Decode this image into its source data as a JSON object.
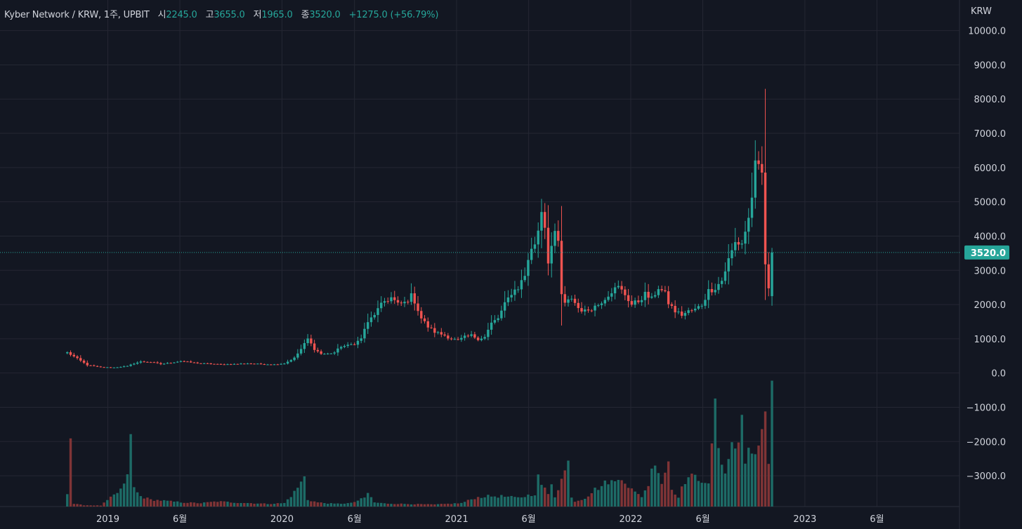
{
  "legend": {
    "symbol": "Kyber Network / KRW, 1주, UPBIT",
    "open_label": "시",
    "open": "2245.0",
    "high_label": "고",
    "high": "3655.0",
    "low_label": "저",
    "low": "1965.0",
    "close_label": "종",
    "close": "3520.0",
    "change": "+1275.0 (+56.79%)"
  },
  "axis": {
    "currency": "KRW",
    "last_price_badge": "3520.0",
    "y_tick_labels": [
      "10000.0",
      "9000.0",
      "8000.0",
      "7000.0",
      "6000.0",
      "5000.0",
      "4000.0",
      "3000.0",
      "2000.0",
      "1000.0",
      "0.0",
      "−1000.0",
      "−2000.0",
      "−3000.0"
    ],
    "x_tick_labels": [
      "2019",
      "6월",
      "2020",
      "6월",
      "2021",
      "6월",
      "2022",
      "6월",
      "2023",
      "6월"
    ]
  },
  "colors": {
    "background": "#131722",
    "grid": "#242733",
    "up": "#26a69a",
    "down": "#ef5350",
    "up_volume": "#1d6b66",
    "down_volume": "#803436",
    "text": "#d1d4dc",
    "last_price_line": "#26a69a"
  },
  "chart_data": {
    "type": "candlestick",
    "interval": "1 week",
    "x_start": "2018-10-08",
    "y_ticks": [
      10000,
      9000,
      8000,
      7000,
      6000,
      5000,
      4000,
      3000,
      2000,
      1000,
      0,
      -1000,
      -2000,
      -3000
    ],
    "y_range": [
      -3900,
      10300
    ],
    "x_ticks": [
      "2019-01-01",
      "2019-06-01",
      "2020-01-01",
      "2020-06-01",
      "2021-01-01",
      "2021-06-01",
      "2022-01-01",
      "2022-06-01",
      "2023-01-01",
      "2023-06-01"
    ],
    "x_range": [
      "2018-05-20",
      "2023-11-21"
    ],
    "last_close": 3520,
    "grid": true,
    "price_keypoints": [
      [
        0,
        600
      ],
      [
        3,
        420
      ],
      [
        6,
        230
      ],
      [
        10,
        170
      ],
      [
        14,
        160
      ],
      [
        18,
        200
      ],
      [
        20,
        280
      ],
      [
        22,
        330
      ],
      [
        25,
        320
      ],
      [
        28,
        260
      ],
      [
        31,
        300
      ],
      [
        34,
        350
      ],
      [
        37,
        310
      ],
      [
        40,
        280
      ],
      [
        43,
        270
      ],
      [
        46,
        250
      ],
      [
        50,
        260
      ],
      [
        54,
        280
      ],
      [
        58,
        260
      ],
      [
        62,
        250
      ],
      [
        65,
        280
      ],
      [
        68,
        440
      ],
      [
        70,
        700
      ],
      [
        72,
        1000
      ],
      [
        74,
        700
      ],
      [
        76,
        560
      ],
      [
        78,
        560
      ],
      [
        80,
        600
      ],
      [
        82,
        780
      ],
      [
        84,
        800
      ],
      [
        86,
        860
      ],
      [
        88,
        1000
      ],
      [
        89,
        1300
      ],
      [
        91,
        1600
      ],
      [
        93,
        1850
      ],
      [
        95,
        2100
      ],
      [
        97,
        2200
      ],
      [
        99,
        2000
      ],
      [
        101,
        2050
      ],
      [
        103,
        2250
      ],
      [
        104,
        2100
      ],
      [
        106,
        1600
      ],
      [
        108,
        1350
      ],
      [
        110,
        1200
      ],
      [
        113,
        1100
      ],
      [
        115,
        1000
      ],
      [
        117,
        950
      ],
      [
        119,
        1050
      ],
      [
        121,
        1100
      ],
      [
        123,
        1000
      ],
      [
        125,
        1050
      ],
      [
        127,
        1450
      ],
      [
        129,
        1600
      ],
      [
        131,
        2000
      ],
      [
        133,
        2350
      ],
      [
        135,
        2500
      ],
      [
        137,
        2850
      ],
      [
        138,
        3350
      ],
      [
        140,
        3800
      ],
      [
        141,
        4200
      ],
      [
        142,
        4800
      ],
      [
        143,
        4300
      ],
      [
        144,
        3300
      ],
      [
        145,
        3700
      ],
      [
        146,
        4000
      ],
      [
        147,
        3800
      ],
      [
        148,
        2300
      ],
      [
        149,
        2000
      ],
      [
        151,
        2200
      ],
      [
        153,
        1900
      ],
      [
        155,
        1800
      ],
      [
        157,
        1900
      ],
      [
        159,
        2000
      ],
      [
        161,
        2200
      ],
      [
        163,
        2400
      ],
      [
        165,
        2500
      ],
      [
        167,
        2300
      ],
      [
        169,
        2000
      ],
      [
        171,
        2100
      ],
      [
        173,
        2300
      ],
      [
        175,
        2150
      ],
      [
        177,
        2500
      ],
      [
        179,
        2300
      ],
      [
        180,
        2050
      ],
      [
        182,
        1800
      ],
      [
        184,
        1700
      ],
      [
        186,
        1800
      ],
      [
        188,
        1850
      ],
      [
        190,
        2000
      ],
      [
        192,
        2400
      ],
      [
        194,
        2500
      ],
      [
        196,
        2700
      ],
      [
        198,
        3300
      ],
      [
        200,
        3800
      ],
      [
        202,
        3800
      ],
      [
        204,
        4500
      ],
      [
        205,
        5200
      ],
      [
        206,
        6000
      ],
      [
        207,
        5900
      ],
      [
        208,
        5800
      ],
      [
        209,
        3200
      ],
      [
        210,
        2400
      ],
      [
        211,
        3520
      ]
    ],
    "volume_keypoints": [
      [
        0,
        420
      ],
      [
        1,
        2050
      ],
      [
        2,
        80
      ],
      [
        5,
        40
      ],
      [
        10,
        30
      ],
      [
        15,
        400
      ],
      [
        17,
        600
      ],
      [
        18,
        1000
      ],
      [
        19,
        1950
      ],
      [
        20,
        550
      ],
      [
        21,
        400
      ],
      [
        22,
        300
      ],
      [
        25,
        200
      ],
      [
        28,
        180
      ],
      [
        31,
        150
      ],
      [
        35,
        120
      ],
      [
        40,
        100
      ],
      [
        45,
        150
      ],
      [
        50,
        120
      ],
      [
        60,
        80
      ],
      [
        65,
        100
      ],
      [
        68,
        420
      ],
      [
        70,
        700
      ],
      [
        71,
        850
      ],
      [
        72,
        200
      ],
      [
        75,
        120
      ],
      [
        80,
        80
      ],
      [
        85,
        100
      ],
      [
        89,
        250
      ],
      [
        90,
        400
      ],
      [
        92,
        120
      ],
      [
        95,
        90
      ],
      [
        100,
        80
      ],
      [
        110,
        60
      ],
      [
        118,
        100
      ],
      [
        122,
        250
      ],
      [
        125,
        300
      ],
      [
        130,
        300
      ],
      [
        135,
        250
      ],
      [
        140,
        380
      ],
      [
        141,
        850
      ],
      [
        142,
        650
      ],
      [
        144,
        350
      ],
      [
        145,
        700
      ],
      [
        146,
        300
      ],
      [
        150,
        1280
      ],
      [
        151,
        300
      ],
      [
        152,
        150
      ],
      [
        155,
        250
      ],
      [
        158,
        500
      ],
      [
        160,
        600
      ],
      [
        162,
        750
      ],
      [
        164,
        700
      ],
      [
        166,
        900
      ],
      [
        168,
        600
      ],
      [
        170,
        400
      ],
      [
        172,
        300
      ],
      [
        174,
        650
      ],
      [
        176,
        1400
      ],
      [
        178,
        700
      ],
      [
        180,
        1350
      ],
      [
        181,
        500
      ],
      [
        183,
        300
      ],
      [
        185,
        750
      ],
      [
        186,
        850
      ],
      [
        187,
        850
      ],
      [
        188,
        850
      ],
      [
        190,
        800
      ],
      [
        191,
        750
      ],
      [
        192,
        600
      ],
      [
        193,
        1700
      ],
      [
        194,
        3300
      ],
      [
        195,
        1500
      ],
      [
        197,
        1100
      ],
      [
        199,
        1800
      ],
      [
        200,
        1700
      ],
      [
        201,
        1900
      ],
      [
        202,
        2700
      ],
      [
        203,
        1200
      ],
      [
        204,
        1700
      ],
      [
        205,
        1800
      ],
      [
        206,
        1500
      ],
      [
        207,
        1600
      ],
      [
        208,
        2100
      ],
      [
        209,
        2500
      ],
      [
        210,
        1300
      ],
      [
        211,
        3700
      ]
    ]
  }
}
